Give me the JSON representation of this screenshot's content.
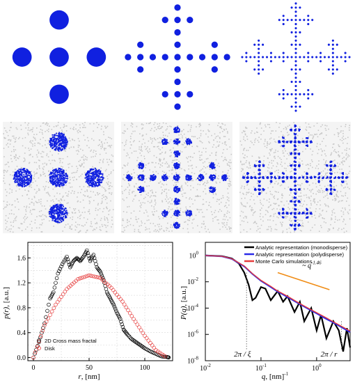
{
  "colors": {
    "blue": "#1020e0",
    "noise": "#c8c8c8",
    "mono": "#000000",
    "poly": "#2a2ae8",
    "monte": "#e63c3c",
    "powerlaw": "#f08c14",
    "grid": "#d8d8d8"
  },
  "chart_data": [
    {
      "type": "scatter",
      "xlabel": ", [nm]",
      "xlabel_var": "r",
      "ylabel": ", [a.u.]",
      "ylabel_var": "p(r)",
      "xlim": [
        -5,
        125
      ],
      "ylim": [
        -0.05,
        1.85
      ],
      "xticks": [
        "0",
        "50",
        "100"
      ],
      "yticks": [
        "0.0",
        "0.4",
        "0.8",
        "1.2",
        "1.6"
      ],
      "grid": true,
      "legend_position": "bottom-left",
      "series": [
        {
          "name": "2D Cross mass fractal",
          "marker": "open-circle",
          "color": "#000000",
          "x": [
            0,
            5,
            10,
            15,
            18,
            22,
            26,
            30,
            33,
            36,
            39,
            42,
            45,
            48,
            51,
            54,
            57,
            60,
            63,
            66,
            69,
            72,
            75,
            78,
            81,
            84,
            88,
            92,
            96,
            100,
            105,
            110,
            115,
            120,
            122
          ],
          "y": [
            0.0,
            0.25,
            0.55,
            0.95,
            1.05,
            1.35,
            1.5,
            1.62,
            1.45,
            1.55,
            1.6,
            1.55,
            1.62,
            1.72,
            1.55,
            1.65,
            1.45,
            1.38,
            1.25,
            1.05,
            0.95,
            0.85,
            0.72,
            0.62,
            0.45,
            0.38,
            0.3,
            0.25,
            0.2,
            0.15,
            0.1,
            0.06,
            0.02,
            0.01,
            0.0
          ]
        },
        {
          "name": "Disk",
          "marker": "open-circle",
          "color": "#e63c3c",
          "x": [
            0,
            10,
            20,
            30,
            40,
            50,
            60,
            70,
            80,
            90,
            100,
            110,
            120
          ],
          "y": [
            0.0,
            0.52,
            0.85,
            1.1,
            1.26,
            1.32,
            1.28,
            1.12,
            0.9,
            0.62,
            0.35,
            0.12,
            0.0
          ]
        }
      ]
    },
    {
      "type": "line",
      "xlabel": ", [nm]",
      "xlabel_var": "q",
      "xlabel_exp": "-1",
      "ylabel": ", [a.u.]",
      "ylabel_var": "P(q)",
      "xscale": "log",
      "yscale": "log",
      "xlim": [
        0.01,
        4
      ],
      "ylim": [
        1e-08,
        10
      ],
      "xticks": [
        "10",
        "10",
        "10"
      ],
      "xtick_exponents": [
        "-2",
        "-1",
        "0"
      ],
      "yticks": [
        "10",
        "10",
        "10",
        "10",
        "10"
      ],
      "ytick_exponents": [
        "0",
        "-2",
        "-4",
        "-6",
        "-8"
      ],
      "legend_position": "top-right",
      "series": [
        {
          "name": "Analytic representation (monodisperse)",
          "color": "#000000",
          "x": [
            0.01,
            0.02,
            0.03,
            0.04,
            0.05,
            0.06,
            0.07,
            0.08,
            0.1,
            0.12,
            0.15,
            0.2,
            0.25,
            0.3,
            0.4,
            0.5,
            0.6,
            0.8,
            1.0,
            1.2,
            1.5,
            2.0,
            2.5,
            3.0,
            3.5,
            4.0
          ],
          "y": [
            1.0,
            0.9,
            0.6,
            0.25,
            0.05,
            0.006,
            0.0004,
            0.0006,
            0.004,
            0.003,
            0.0004,
            0.002,
            0.0003,
            0.0008,
            5e-05,
            0.0003,
            1e-05,
            0.0001,
            2e-06,
            3e-05,
            5e-07,
            1e-05,
            2e-06,
            5e-08,
            3e-06,
            1e-07
          ]
        },
        {
          "name": "Analytic representation (polydisperse)",
          "color": "#2a2ae8",
          "x": [
            0.01,
            0.02,
            0.03,
            0.05,
            0.07,
            0.1,
            0.15,
            0.2,
            0.3,
            0.5,
            0.7,
            1.0,
            1.5,
            2.0,
            3.0,
            4.0
          ],
          "y": [
            1.0,
            0.85,
            0.55,
            0.15,
            0.04,
            0.012,
            0.004,
            0.0018,
            0.0007,
            0.0002,
            9e-05,
            4e-05,
            1.5e-05,
            8e-06,
            3e-06,
            1.5e-06
          ]
        },
        {
          "name": "Monte Carlo simulations",
          "color": "#e63c3c",
          "x": [
            0.01,
            0.02,
            0.03,
            0.05,
            0.07,
            0.1,
            0.15,
            0.2,
            0.3,
            0.5,
            0.7,
            1.0,
            1.5,
            2.0,
            3.0,
            4.0
          ],
          "y": [
            1.0,
            0.86,
            0.56,
            0.16,
            0.042,
            0.013,
            0.0045,
            0.002,
            0.0008,
            0.00022,
            0.0001,
            4.5e-05,
            1.8e-05,
            9e-06,
            3.5e-06,
            1.8e-06
          ]
        }
      ],
      "annotations": {
        "power_law_text": "~ q",
        "power_law_exponent": "-1.46",
        "xi_label": "2π / ξ",
        "r_label": "2π / r"
      }
    }
  ]
}
